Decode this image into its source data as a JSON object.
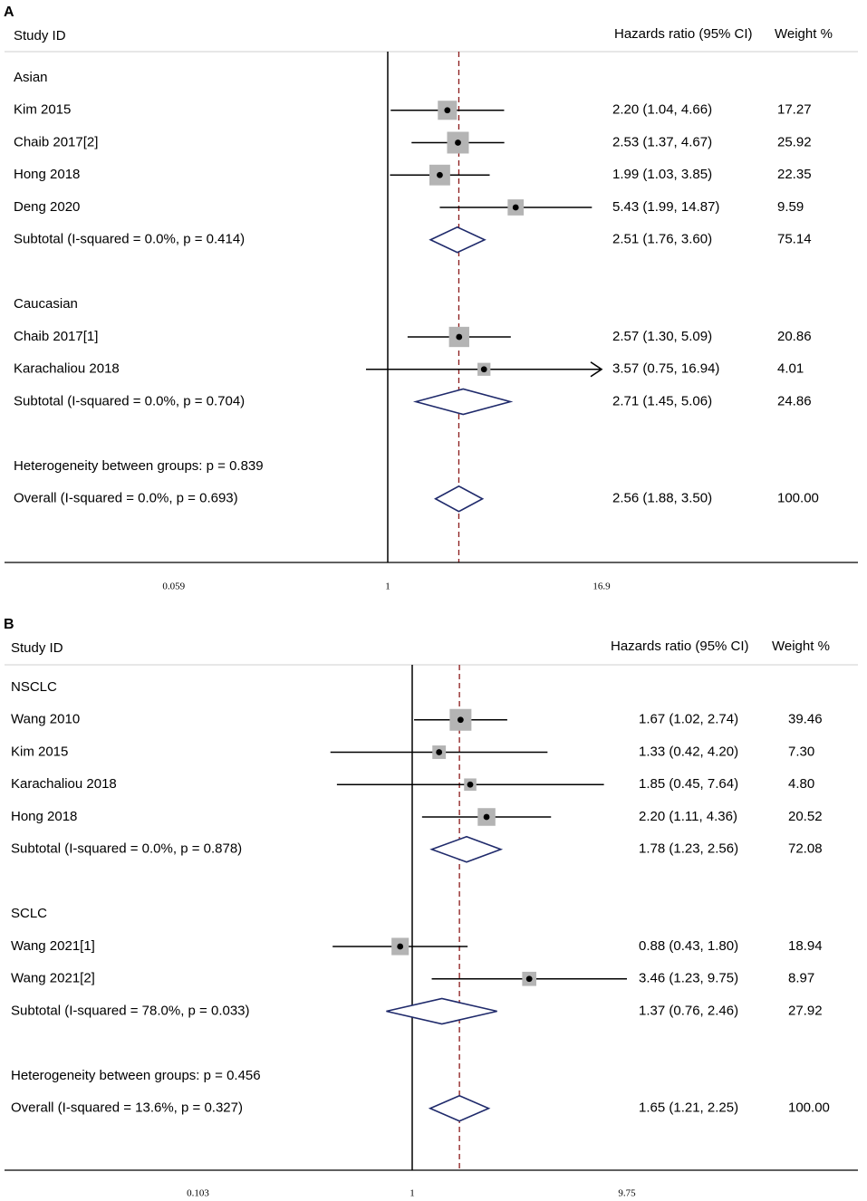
{
  "chart_data": [
    {
      "type": "forest",
      "panel": "A",
      "header": {
        "study": "Study ID",
        "effect": "Hazards ratio (95% CI)",
        "weight": "Weight %"
      },
      "scale": "log",
      "xlim": [
        0.059,
        16.9
      ],
      "ticks": [
        {
          "value": 0.059,
          "label": "0.059"
        },
        {
          "value": 1,
          "label": "1"
        },
        {
          "value": 16.9,
          "label": "16.9"
        }
      ],
      "null_line": 1,
      "overall_line": 2.56,
      "rows": [
        {
          "kind": "group",
          "label": "Asian"
        },
        {
          "kind": "study",
          "label": "Kim 2015",
          "hr": 2.2,
          "lo": 1.04,
          "hi": 4.66,
          "text": "2.20 (1.04, 4.66)",
          "weight": "17.27",
          "w": 17.27
        },
        {
          "kind": "study",
          "label": "Chaib 2017[2]",
          "hr": 2.53,
          "lo": 1.37,
          "hi": 4.67,
          "text": "2.53 (1.37, 4.67)",
          "weight": "25.92",
          "w": 25.92
        },
        {
          "kind": "study",
          "label": "Hong 2018",
          "hr": 1.99,
          "lo": 1.03,
          "hi": 3.85,
          "text": "1.99 (1.03, 3.85)",
          "weight": "22.35",
          "w": 22.35
        },
        {
          "kind": "study",
          "label": "Deng 2020",
          "hr": 5.43,
          "lo": 1.99,
          "hi": 14.87,
          "text": "5.43 (1.99, 14.87)",
          "weight": "9.59",
          "w": 9.59
        },
        {
          "kind": "subtotal",
          "label": "Subtotal  (I-squared = 0.0%, p = 0.414)",
          "hr": 2.51,
          "lo": 1.76,
          "hi": 3.6,
          "text": "2.51 (1.76, 3.60)",
          "weight": "75.14"
        },
        {
          "kind": "blank"
        },
        {
          "kind": "group",
          "label": "Caucasian"
        },
        {
          "kind": "study",
          "label": "Chaib 2017[1]",
          "hr": 2.57,
          "lo": 1.3,
          "hi": 5.09,
          "text": "2.57 (1.30, 5.09)",
          "weight": "20.86",
          "w": 20.86
        },
        {
          "kind": "study",
          "label": "Karachaliou 2018",
          "hr": 3.57,
          "lo": 0.75,
          "hi": 16.94,
          "text": "3.57 (0.75, 16.94)",
          "weight": "4.01",
          "w": 4.01,
          "arrow_right": true
        },
        {
          "kind": "subtotal",
          "label": "Subtotal  (I-squared = 0.0%, p = 0.704)",
          "hr": 2.71,
          "lo": 1.45,
          "hi": 5.06,
          "text": "2.71 (1.45, 5.06)",
          "weight": "24.86"
        },
        {
          "kind": "blank"
        },
        {
          "kind": "note",
          "label": "Heterogeneity between groups: p = 0.839"
        },
        {
          "kind": "overall",
          "label": "Overall  (I-squared = 0.0%, p = 0.693)",
          "hr": 2.56,
          "lo": 1.88,
          "hi": 3.5,
          "text": "2.56 (1.88, 3.50)",
          "weight": "100.00"
        }
      ]
    },
    {
      "type": "forest",
      "panel": "B",
      "header": {
        "study": "Study ID",
        "effect": "Hazards ratio (95% CI)",
        "weight": "Weight %"
      },
      "scale": "log",
      "xlim": [
        0.103,
        9.75
      ],
      "ticks": [
        {
          "value": 0.103,
          "label": "0.103"
        },
        {
          "value": 1,
          "label": "1"
        },
        {
          "value": 9.75,
          "label": "9.75"
        }
      ],
      "null_line": 1,
      "overall_line": 1.65,
      "rows": [
        {
          "kind": "group",
          "label": "NSCLC"
        },
        {
          "kind": "study",
          "label": "Wang 2010",
          "hr": 1.67,
          "lo": 1.02,
          "hi": 2.74,
          "text": "1.67 (1.02, 2.74)",
          "weight": "39.46",
          "w": 39.46
        },
        {
          "kind": "study",
          "label": "Kim 2015",
          "hr": 1.33,
          "lo": 0.42,
          "hi": 4.2,
          "text": "1.33 (0.42, 4.20)",
          "weight": "7.30",
          "w": 7.3
        },
        {
          "kind": "study",
          "label": "Karachaliou 2018",
          "hr": 1.85,
          "lo": 0.45,
          "hi": 7.64,
          "text": "1.85 (0.45, 7.64)",
          "weight": "4.80",
          "w": 4.8
        },
        {
          "kind": "study",
          "label": "Hong 2018",
          "hr": 2.2,
          "lo": 1.11,
          "hi": 4.36,
          "text": "2.20 (1.11, 4.36)",
          "weight": "20.52",
          "w": 20.52
        },
        {
          "kind": "subtotal",
          "label": "Subtotal  (I-squared = 0.0%, p = 0.878)",
          "hr": 1.78,
          "lo": 1.23,
          "hi": 2.56,
          "text": "1.78 (1.23, 2.56)",
          "weight": "72.08"
        },
        {
          "kind": "blank"
        },
        {
          "kind": "group",
          "label": "SCLC"
        },
        {
          "kind": "study",
          "label": "Wang 2021[1]",
          "hr": 0.88,
          "lo": 0.43,
          "hi": 1.8,
          "text": "0.88 (0.43, 1.80)",
          "weight": "18.94",
          "w": 18.94
        },
        {
          "kind": "study",
          "label": "Wang 2021[2]",
          "hr": 3.46,
          "lo": 1.23,
          "hi": 9.75,
          "text": "3.46 (1.23, 9.75)",
          "weight": "8.97",
          "w": 8.97
        },
        {
          "kind": "subtotal",
          "label": "Subtotal  (I-squared = 78.0%, p = 0.033)",
          "hr": 1.37,
          "lo": 0.76,
          "hi": 2.46,
          "text": "1.37 (0.76, 2.46)",
          "weight": "27.92"
        },
        {
          "kind": "blank"
        },
        {
          "kind": "note",
          "label": "Heterogeneity between groups: p = 0.456"
        },
        {
          "kind": "overall",
          "label": "Overall  (I-squared = 13.6%, p = 0.327)",
          "hr": 1.65,
          "lo": 1.21,
          "hi": 2.25,
          "text": "1.65 (1.21, 2.25)",
          "weight": "100.00"
        }
      ]
    }
  ],
  "colors": {
    "diamond": "#1f2a6b",
    "box": "#b4b4b4",
    "overall_line": "#8b1a1a",
    "axis": "#000000"
  }
}
